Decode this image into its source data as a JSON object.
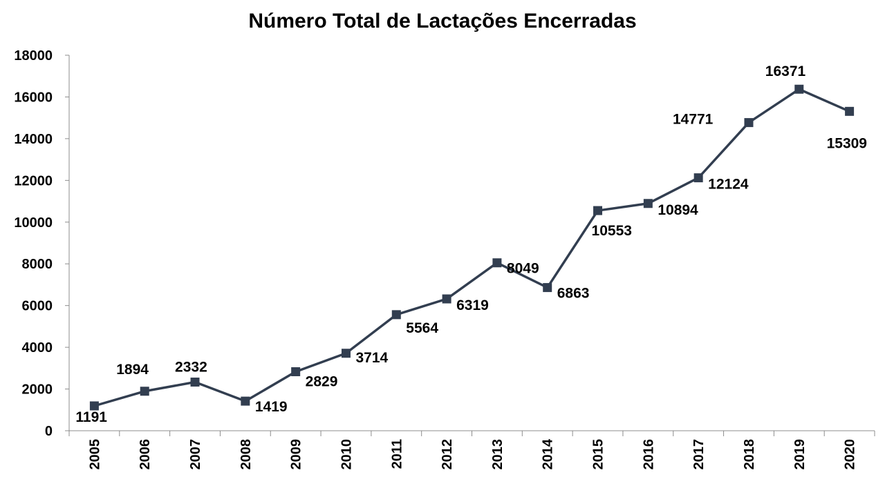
{
  "chart_data": {
    "type": "line",
    "title": "Número Total de Lactações Encerradas",
    "xlabel": "",
    "ylabel": "",
    "categories": [
      "2005",
      "2006",
      "2007",
      "2008",
      "2009",
      "2010",
      "2011",
      "2012",
      "2013",
      "2014",
      "2015",
      "2016",
      "2017",
      "2018",
      "2019",
      "2020"
    ],
    "series": [
      {
        "values": [
          1191,
          1894,
          2332,
          1419,
          2829,
          3714,
          5564,
          6319,
          8049,
          6863,
          10553,
          10894,
          12124,
          14771,
          16371,
          15309
        ]
      }
    ],
    "ylim": [
      0,
      18000
    ],
    "yticks": [
      0,
      2000,
      4000,
      6000,
      8000,
      10000,
      12000,
      14000,
      16000,
      18000
    ],
    "grid": false,
    "legend": "none",
    "line_color": "#323e50",
    "marker": "square",
    "data_labels": true
  }
}
